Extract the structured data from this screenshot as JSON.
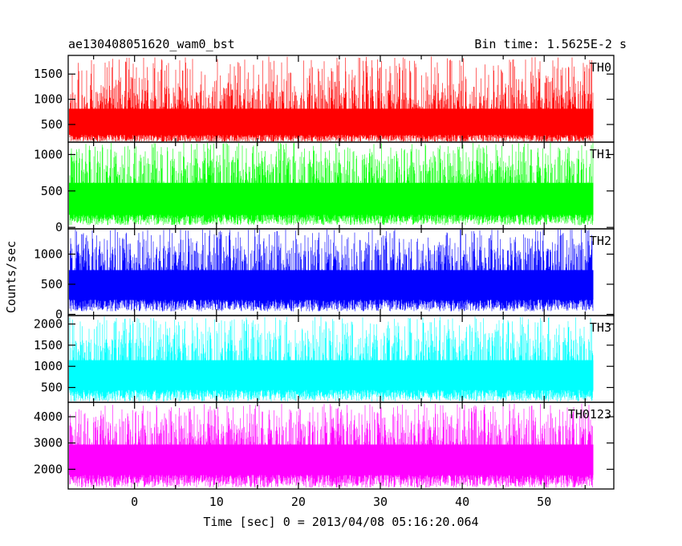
{
  "chart_data": {
    "type": "line",
    "title_left": "ae130408051620_wam0_bst",
    "title_right": "Bin time: 1.5625E-2 s",
    "xlabel": "Time [sec] 0 = 2013/04/08 05:16:20.064",
    "ylabel": "Counts/sec",
    "xlim": [
      -8.1,
      58.5
    ],
    "x_data_range": [
      -8.0,
      56.0
    ],
    "x_ticks": [
      0,
      10,
      20,
      30,
      40,
      50
    ],
    "x_tick_labels": [
      "0",
      "10",
      "20",
      "30",
      "40",
      "50"
    ],
    "panels": [
      {
        "name": "TH0",
        "color": "#ff0000",
        "ylim": [
          150,
          1870
        ],
        "y_ticks": [
          500,
          1000,
          1500
        ],
        "y_tick_labels": [
          "500",
          "1000",
          "1500"
        ],
        "band": {
          "low": [
            140,
            300
          ],
          "core": [
            350,
            1200
          ],
          "high": [
            1200,
            1850
          ]
        }
      },
      {
        "name": "TH1",
        "color": "#00ff00",
        "ylim": [
          -20,
          1170
        ],
        "y_ticks": [
          0,
          500,
          1000
        ],
        "y_tick_labels": [
          "0",
          "500",
          "1000"
        ],
        "band": {
          "low": [
            30,
            180
          ],
          "core": [
            250,
            920
          ],
          "high": [
            900,
            1170
          ]
        }
      },
      {
        "name": "TH2",
        "color": "#0000ff",
        "ylim": [
          -20,
          1420
        ],
        "y_ticks": [
          0,
          500,
          1000
        ],
        "y_tick_labels": [
          "0",
          "500",
          "1000"
        ],
        "band": {
          "low": [
            50,
            250
          ],
          "core": [
            300,
            1100
          ],
          "high": [
            1050,
            1420
          ]
        }
      },
      {
        "name": "TH3",
        "color": "#00ffff",
        "ylim": [
          150,
          2200
        ],
        "y_ticks": [
          500,
          1000,
          1500,
          2000
        ],
        "y_tick_labels": [
          "500",
          "1000",
          "1500",
          "2000"
        ],
        "band": {
          "low": [
            170,
            450
          ],
          "core": [
            550,
            1650
          ],
          "high": [
            1600,
            2180
          ]
        }
      },
      {
        "name": "TH0123",
        "color": "#ff00ff",
        "ylim": [
          1250,
          4550
        ],
        "y_ticks": [
          2000,
          3000,
          4000
        ],
        "y_tick_labels": [
          "2000",
          "3000",
          "4000"
        ],
        "band": {
          "low": [
            1300,
            1800
          ],
          "core": [
            2000,
            3750
          ],
          "high": [
            3700,
            4500
          ]
        }
      }
    ]
  }
}
